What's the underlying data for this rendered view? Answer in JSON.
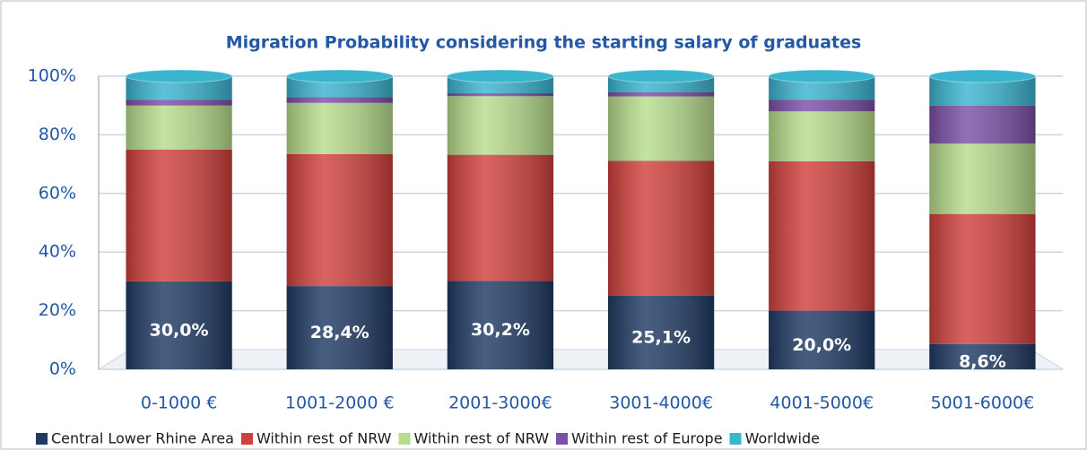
{
  "chart_data": {
    "type": "bar",
    "stacked": true,
    "title": "Migration Probability considering the starting salary of graduates",
    "categories": [
      "0-1000 €",
      "1001-2000 €",
      "2001-3000€",
      "3001-4000€",
      "4001-5000€",
      "5001-6000€"
    ],
    "series": [
      {
        "name": "Central Lower Rhine Area",
        "color": "#1f3a64",
        "values": [
          30.0,
          28.4,
          30.2,
          25.1,
          20.0,
          8.6
        ],
        "value_labels": [
          "30,0%",
          "28,4%",
          "30,2%",
          "25,1%",
          "20,0%",
          "8,6%"
        ]
      },
      {
        "name": "Within rest of NRW",
        "color": "#d0403c",
        "values": [
          45,
          45,
          43,
          46,
          51,
          44.4
        ]
      },
      {
        "name": "Within rest of NRW",
        "color": "#b7dc8c",
        "values": [
          15,
          17.5,
          20,
          22,
          17,
          24
        ]
      },
      {
        "name": "Within rest of Europe",
        "color": "#7b4fa6",
        "values": [
          2,
          2,
          1,
          1.5,
          4,
          13
        ]
      },
      {
        "name": "Worldwide",
        "color": "#3bb4d0",
        "values": [
          8,
          7.1,
          5.8,
          5.4,
          8,
          10
        ]
      }
    ],
    "ylim": [
      0,
      100
    ],
    "yticks": [
      {
        "value": 0,
        "label": "0%"
      },
      {
        "value": 20,
        "label": "20%"
      },
      {
        "value": 40,
        "label": "40%"
      },
      {
        "value": 60,
        "label": "60%"
      },
      {
        "value": 80,
        "label": "80%"
      },
      {
        "value": 100,
        "label": "100%"
      }
    ],
    "grid": true,
    "legend": "bottom"
  }
}
